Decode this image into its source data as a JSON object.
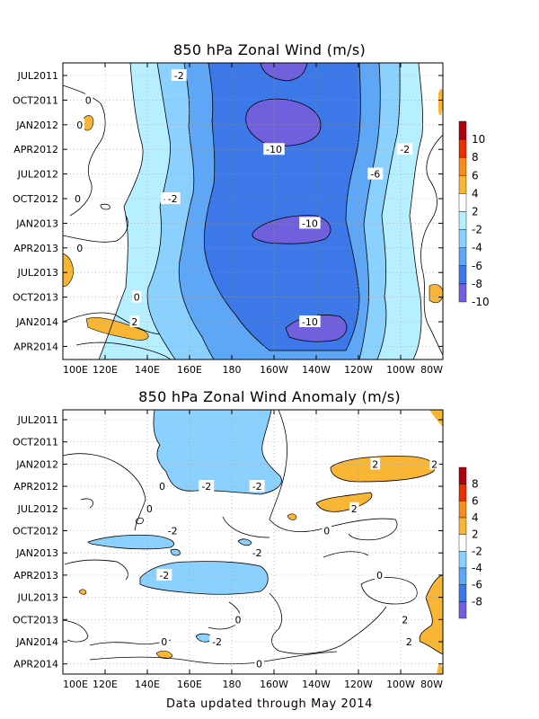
{
  "footer": "Data updated through May 2014",
  "chart_data": [
    {
      "type": "heatmap",
      "title": "850 hPa Zonal Wind (m/s)",
      "x_ticks": [
        "100E",
        "120E",
        "140E",
        "160E",
        "180",
        "160W",
        "140W",
        "120W",
        "100W",
        "80W"
      ],
      "y_ticks": [
        "JUL2011",
        "OCT2011",
        "JAN2012",
        "APR2012",
        "JUL2012",
        "OCT2012",
        "JAN2013",
        "APR2013",
        "JUL2013",
        "OCT2013",
        "JAN2014",
        "APR2014"
      ],
      "colorbar_labels": [
        "10",
        "8",
        "6",
        "4",
        "2",
        "-2",
        "-4",
        "-6",
        "-8",
        "-10"
      ],
      "colorbar_colors": [
        "#b0000e",
        "#ea2e00",
        "#f98a1e",
        "#f9b634",
        "#ffffff",
        "#b6efff",
        "#8bd1ff",
        "#5ea6f6",
        "#3c78e8",
        "#7060de"
      ],
      "contour_labels": [
        {
          "text": "-2",
          "x": "155E",
          "t": "JUL2011"
        },
        {
          "text": "0",
          "x": "112E",
          "t": "OCT2011"
        },
        {
          "text": "0",
          "x": "108E",
          "t": "JAN2012"
        },
        {
          "text": "-2",
          "x": "98W",
          "t": "APR2012"
        },
        {
          "text": "-10",
          "x": "160W",
          "t": "APR2012"
        },
        {
          "text": "-6",
          "x": "112W",
          "t": "JUL2012"
        },
        {
          "text": "-2",
          "x": "150E",
          "t": "OCT2012"
        },
        {
          "text": "0",
          "x": "107E",
          "t": "OCT2012"
        },
        {
          "text": "-2",
          "x": "152E",
          "t": "OCT2012"
        },
        {
          "text": "-10",
          "x": "143W",
          "t": "JAN2013"
        },
        {
          "text": "0",
          "x": "108E",
          "t": "APR2013"
        },
        {
          "text": "0",
          "x": "135E",
          "t": "OCT2013"
        },
        {
          "text": "-10",
          "x": "143W",
          "t": "JAN2014"
        },
        {
          "text": "2",
          "x": "134E",
          "t": "JAN2014"
        }
      ],
      "field_description_values": {
        "west_pacific_100E_130E": 0,
        "dateline_minimum": -10,
        "east_pacific_100W_80W": 0
      }
    },
    {
      "type": "heatmap",
      "title": "850 hPa Zonal Wind Anomaly (m/s)",
      "x_ticks": [
        "100E",
        "120E",
        "140E",
        "160E",
        "180",
        "160W",
        "140W",
        "120W",
        "100W",
        "80W"
      ],
      "y_ticks": [
        "JUL2011",
        "OCT2011",
        "JAN2012",
        "APR2012",
        "JUL2012",
        "OCT2012",
        "JAN2013",
        "APR2013",
        "JUL2013",
        "OCT2013",
        "JAN2014",
        "APR2014"
      ],
      "colorbar_labels": [
        "8",
        "6",
        "4",
        "2",
        "-2",
        "-4",
        "-6",
        "-8"
      ],
      "colorbar_colors": [
        "#b0000e",
        "#ea2e00",
        "#f98a1e",
        "#f9b634",
        "#ffffff",
        "#8bd1ff",
        "#5ea6f6",
        "#3c78e8",
        "#7060de"
      ],
      "contour_labels": [
        {
          "text": "2",
          "x": "112W",
          "t": "JAN2012"
        },
        {
          "text": "2",
          "x": "84W",
          "t": "JAN2012"
        },
        {
          "text": "-2",
          "x": "168E",
          "t": "APR2012"
        },
        {
          "text": "-2",
          "x": "168W",
          "t": "APR2012"
        },
        {
          "text": "0",
          "x": "147E",
          "t": "APR2012"
        },
        {
          "text": "2",
          "x": "122W",
          "t": "JUL2012"
        },
        {
          "text": "0",
          "x": "141E",
          "t": "JUL2012"
        },
        {
          "text": "0",
          "x": "135W",
          "t": "OCT2012"
        },
        {
          "text": "-2",
          "x": "152E",
          "t": "OCT2012"
        },
        {
          "text": "-2",
          "x": "168W",
          "t": "JAN2013"
        },
        {
          "text": "-2",
          "x": "148E",
          "t": "APR2013"
        },
        {
          "text": "0",
          "x": "110W",
          "t": "APR2013"
        },
        {
          "text": "0",
          "x": "177W",
          "t": "OCT2013"
        },
        {
          "text": "2",
          "x": "98W",
          "t": "OCT2013"
        },
        {
          "text": "2",
          "x": "96W",
          "t": "JAN2014"
        },
        {
          "text": "0",
          "x": "148E",
          "t": "JAN2014"
        },
        {
          "text": "-2",
          "x": "173E",
          "t": "JAN2014"
        },
        {
          "text": "0",
          "x": "167W",
          "t": "APR2014"
        }
      ],
      "field_description_values": {
        "dateline_region_min": -4,
        "east_pacific_max": 4
      }
    }
  ]
}
